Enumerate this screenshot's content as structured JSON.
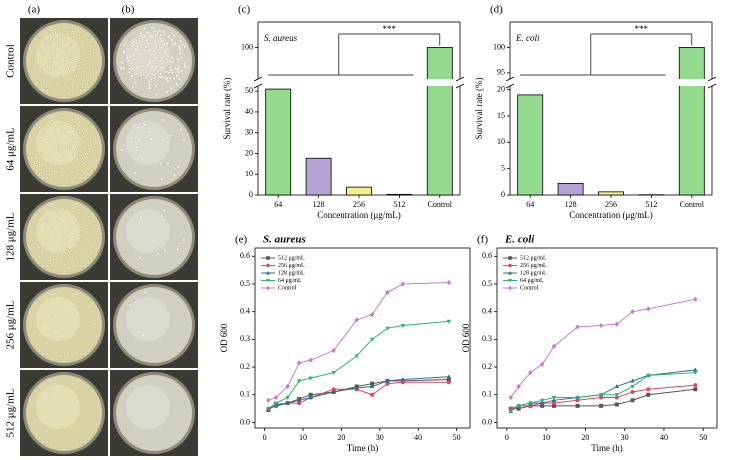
{
  "photo_panel": {
    "labels": [
      "(a)",
      "(b)"
    ],
    "rows": [
      "Control",
      "64 μg/mL",
      "128 μg/mL",
      "256 μg/mL",
      "512 μg/mL"
    ]
  },
  "chart_data": [
    {
      "type": "bar",
      "label": "(c)",
      "title": "S. aureus",
      "xlabel": "Concentration (μg/mL)",
      "ylabel": "Survival rate (%)",
      "categories": [
        "64",
        "128",
        "256",
        "512",
        "Control"
      ],
      "values": [
        51,
        17.7,
        3.8,
        0.3,
        100
      ],
      "colors": [
        "#93da8f",
        "#b3a3d6",
        "#f4ef8a",
        "#f59ef2"
      ],
      "ylim": [
        0,
        105
      ],
      "y_break": [
        52,
        94
      ],
      "yticks": [
        0,
        10,
        20,
        30,
        40,
        50,
        100
      ],
      "annotation": "***"
    },
    {
      "type": "bar",
      "label": "(d)",
      "title": "E. coli",
      "xlabel": "Concentration (μg/mL)",
      "ylabel": "Survival rate (%)",
      "categories": [
        "64",
        "128",
        "256",
        "512",
        "Control"
      ],
      "values": [
        19,
        2.2,
        0.6,
        0.05,
        100
      ],
      "colors": [
        "#93da8f",
        "#b3a3d6",
        "#f4ef8a",
        "#f59ef2"
      ],
      "ylim": [
        0,
        105
      ],
      "y_break": [
        20.5,
        94
      ],
      "yticks": [
        0,
        5,
        10,
        15,
        20,
        95,
        100
      ],
      "annotation": "***"
    },
    {
      "type": "line",
      "label": "(e)",
      "title": "S. aureus",
      "xlabel": "Time (h)",
      "ylabel": "OD 600",
      "x": [
        1,
        3,
        6,
        9,
        12,
        18,
        24,
        28,
        32,
        36,
        48
      ],
      "xlim": [
        -2.5,
        53.5
      ],
      "xticks": [
        0,
        10,
        20,
        30,
        40,
        50
      ],
      "ylim": [
        -0.02,
        0.63
      ],
      "yticks": [
        {
          "value": 0,
          "label": "0.0"
        },
        0.1,
        0.2,
        0.3,
        0.4,
        0.5,
        0.6
      ],
      "series": [
        {
          "name": "512 μg/mL",
          "color": "#555555",
          "marker": "square",
          "values": [
            0.045,
            0.065,
            0.07,
            0.085,
            0.1,
            0.11,
            0.13,
            0.14,
            0.15,
            0.15,
            0.155
          ]
        },
        {
          "name": "256 μg/mL",
          "color": "#e8416a",
          "marker": "circle",
          "values": [
            0.05,
            0.06,
            0.07,
            0.07,
            0.09,
            0.12,
            0.12,
            0.1,
            0.14,
            0.145,
            0.145
          ]
        },
        {
          "name": "128 μg/mL",
          "color": "#2e6f8e",
          "marker": "triangle-up",
          "values": [
            0.05,
            0.06,
            0.07,
            0.08,
            0.09,
            0.11,
            0.125,
            0.13,
            0.15,
            0.155,
            0.165
          ]
        },
        {
          "name": "64 μg/mL",
          "color": "#2cb56e",
          "marker": "triangle-down",
          "values": [
            0.05,
            0.07,
            0.09,
            0.15,
            0.16,
            0.18,
            0.24,
            0.3,
            0.34,
            0.35,
            0.365
          ]
        },
        {
          "name": "Control",
          "color": "#c67bd0",
          "marker": "diamond",
          "values": [
            0.08,
            0.09,
            0.13,
            0.215,
            0.225,
            0.26,
            0.37,
            0.39,
            0.47,
            0.5,
            0.505
          ]
        }
      ]
    },
    {
      "type": "line",
      "label": "(f)",
      "title": "E. coli",
      "xlabel": "Time (h)",
      "ylabel": "OD 600",
      "x": [
        1,
        3,
        6,
        9,
        12,
        18,
        24,
        28,
        32,
        36,
        48
      ],
      "xlim": [
        -2.5,
        53.5
      ],
      "xticks": [
        0,
        10,
        20,
        30,
        40,
        50
      ],
      "ylim": [
        -0.02,
        0.63
      ],
      "yticks": [
        {
          "value": 0,
          "label": "0.0"
        },
        0.1,
        0.2,
        0.3,
        0.4,
        0.5,
        0.6
      ],
      "series": [
        {
          "name": "512 μg/mL",
          "color": "#555555",
          "marker": "square",
          "values": [
            0.05,
            0.05,
            0.06,
            0.06,
            0.06,
            0.06,
            0.06,
            0.065,
            0.08,
            0.1,
            0.12
          ]
        },
        {
          "name": "256 μg/mL",
          "color": "#e8416a",
          "marker": "circle",
          "values": [
            0.05,
            0.06,
            0.06,
            0.07,
            0.07,
            0.08,
            0.09,
            0.09,
            0.11,
            0.12,
            0.135
          ]
        },
        {
          "name": "128 μg/mL",
          "color": "#2e6f8e",
          "marker": "triangle-up",
          "values": [
            0.04,
            0.06,
            0.07,
            0.07,
            0.08,
            0.09,
            0.1,
            0.13,
            0.15,
            0.17,
            0.19
          ]
        },
        {
          "name": "64 μg/mL",
          "color": "#2cb56e",
          "marker": "triangle-down",
          "values": [
            0.04,
            0.06,
            0.07,
            0.08,
            0.09,
            0.09,
            0.1,
            0.1,
            0.13,
            0.17,
            0.18
          ]
        },
        {
          "name": "Control",
          "color": "#c67bd0",
          "marker": "diamond",
          "values": [
            0.09,
            0.13,
            0.18,
            0.21,
            0.275,
            0.345,
            0.35,
            0.355,
            0.4,
            0.41,
            0.445
          ]
        }
      ]
    }
  ]
}
